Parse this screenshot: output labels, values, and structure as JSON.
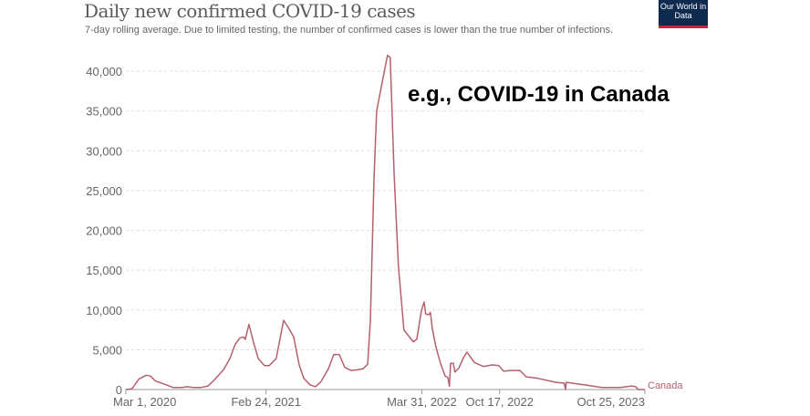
{
  "header": {
    "title": "Daily new confirmed COVID-19 cases",
    "subtitle": "7-day rolling average. Due to limited testing, the number of confirmed cases is lower than the true number of infections.",
    "logo_text": "Our World in Data"
  },
  "annotation": "e.g., COVID-19 in Canada",
  "chart_data": {
    "type": "line",
    "title": "Daily new confirmed COVID-19 cases",
    "xlabel": "",
    "ylabel": "",
    "ylim": [
      0,
      42000
    ],
    "xlim": [
      "2020-03-01",
      "2023-10-25"
    ],
    "yticks": [
      0,
      5000,
      10000,
      15000,
      20000,
      25000,
      30000,
      35000,
      40000
    ],
    "ytick_labels": [
      "0",
      "5,000",
      "10,000",
      "15,000",
      "20,000",
      "25,000",
      "30,000",
      "35,000",
      "40,000"
    ],
    "xticks": [
      "2020-03-01",
      "2021-02-24",
      "2022-03-31",
      "2022-10-17",
      "2023-10-25"
    ],
    "xtick_labels": [
      "Mar 1, 2020",
      "Feb 24, 2021",
      "Mar 31, 2022",
      "Oct 17, 2022",
      "Oct 25, 2023"
    ],
    "grid": "horizontal dashed",
    "line_color": "#b5606e",
    "series": [
      {
        "name": "Canada",
        "points": [
          [
            "2020-03-01",
            0
          ],
          [
            "2020-03-17",
            100
          ],
          [
            "2020-04-03",
            1300
          ],
          [
            "2020-04-22",
            1800
          ],
          [
            "2020-05-03",
            1700
          ],
          [
            "2020-05-15",
            1100
          ],
          [
            "2020-06-07",
            700
          ],
          [
            "2020-07-01",
            250
          ],
          [
            "2020-07-24",
            250
          ],
          [
            "2020-08-05",
            350
          ],
          [
            "2020-08-21",
            250
          ],
          [
            "2020-09-09",
            250
          ],
          [
            "2020-09-28",
            450
          ],
          [
            "2020-10-14",
            1200
          ],
          [
            "2020-11-07",
            2500
          ],
          [
            "2020-11-23",
            3900
          ],
          [
            "2020-12-07",
            5700
          ],
          [
            "2020-12-19",
            6500
          ],
          [
            "2020-12-28",
            6600
          ],
          [
            "2021-01-02",
            6300
          ],
          [
            "2021-01-11",
            8200
          ],
          [
            "2021-01-23",
            5900
          ],
          [
            "2021-02-04",
            3900
          ],
          [
            "2021-02-20",
            3000
          ],
          [
            "2021-03-04",
            3000
          ],
          [
            "2021-03-22",
            3900
          ],
          [
            "2021-04-10",
            8700
          ],
          [
            "2021-04-22",
            7800
          ],
          [
            "2021-05-06",
            6600
          ],
          [
            "2021-05-20",
            3100
          ],
          [
            "2021-06-01",
            1400
          ],
          [
            "2021-06-17",
            600
          ],
          [
            "2021-07-01",
            350
          ],
          [
            "2021-07-15",
            1000
          ],
          [
            "2021-08-03",
            2600
          ],
          [
            "2021-08-17",
            4400
          ],
          [
            "2021-08-31",
            4400
          ],
          [
            "2021-09-14",
            2800
          ],
          [
            "2021-09-30",
            2400
          ],
          [
            "2021-10-17",
            2500
          ],
          [
            "2021-10-31",
            2600
          ],
          [
            "2021-11-12",
            3200
          ],
          [
            "2021-11-19",
            8800
          ],
          [
            "2021-11-28",
            26000
          ],
          [
            "2021-12-05",
            35000
          ],
          [
            "2022-01-02",
            42000
          ],
          [
            "2022-01-09",
            41700
          ],
          [
            "2022-01-19",
            27000
          ],
          [
            "2022-01-30",
            15500
          ],
          [
            "2022-02-13",
            7500
          ],
          [
            "2022-03-09",
            6000
          ],
          [
            "2022-03-18",
            6300
          ],
          [
            "2022-03-30",
            9900
          ],
          [
            "2022-04-06",
            11000
          ],
          [
            "2022-04-10",
            9500
          ],
          [
            "2022-04-18",
            9400
          ],
          [
            "2022-04-22",
            9700
          ],
          [
            "2022-04-27",
            7700
          ],
          [
            "2022-05-06",
            5400
          ],
          [
            "2022-05-18",
            3300
          ],
          [
            "2022-05-30",
            1700
          ],
          [
            "2022-06-06",
            1500
          ],
          [
            "2022-06-10",
            400
          ],
          [
            "2022-06-13",
            3300
          ],
          [
            "2022-06-20",
            3300
          ],
          [
            "2022-06-24",
            2200
          ],
          [
            "2022-07-04",
            2700
          ],
          [
            "2022-07-16",
            4000
          ],
          [
            "2022-07-25",
            4700
          ],
          [
            "2022-08-13",
            3400
          ],
          [
            "2022-09-05",
            2900
          ],
          [
            "2022-09-28",
            3100
          ],
          [
            "2022-10-15",
            3000
          ],
          [
            "2022-10-27",
            2300
          ],
          [
            "2022-11-14",
            2400
          ],
          [
            "2022-12-08",
            2400
          ],
          [
            "2022-12-24",
            1600
          ],
          [
            "2023-01-24",
            1400
          ],
          [
            "2023-03-11",
            900
          ],
          [
            "2023-04-01",
            800
          ],
          [
            "2023-04-04",
            0
          ],
          [
            "2023-04-06",
            900
          ],
          [
            "2023-05-21",
            600
          ],
          [
            "2023-07-06",
            250
          ],
          [
            "2023-08-22",
            250
          ],
          [
            "2023-09-22",
            450
          ],
          [
            "2023-10-01",
            350
          ],
          [
            "2023-10-08",
            0
          ],
          [
            "2023-10-25",
            0
          ]
        ]
      }
    ]
  }
}
